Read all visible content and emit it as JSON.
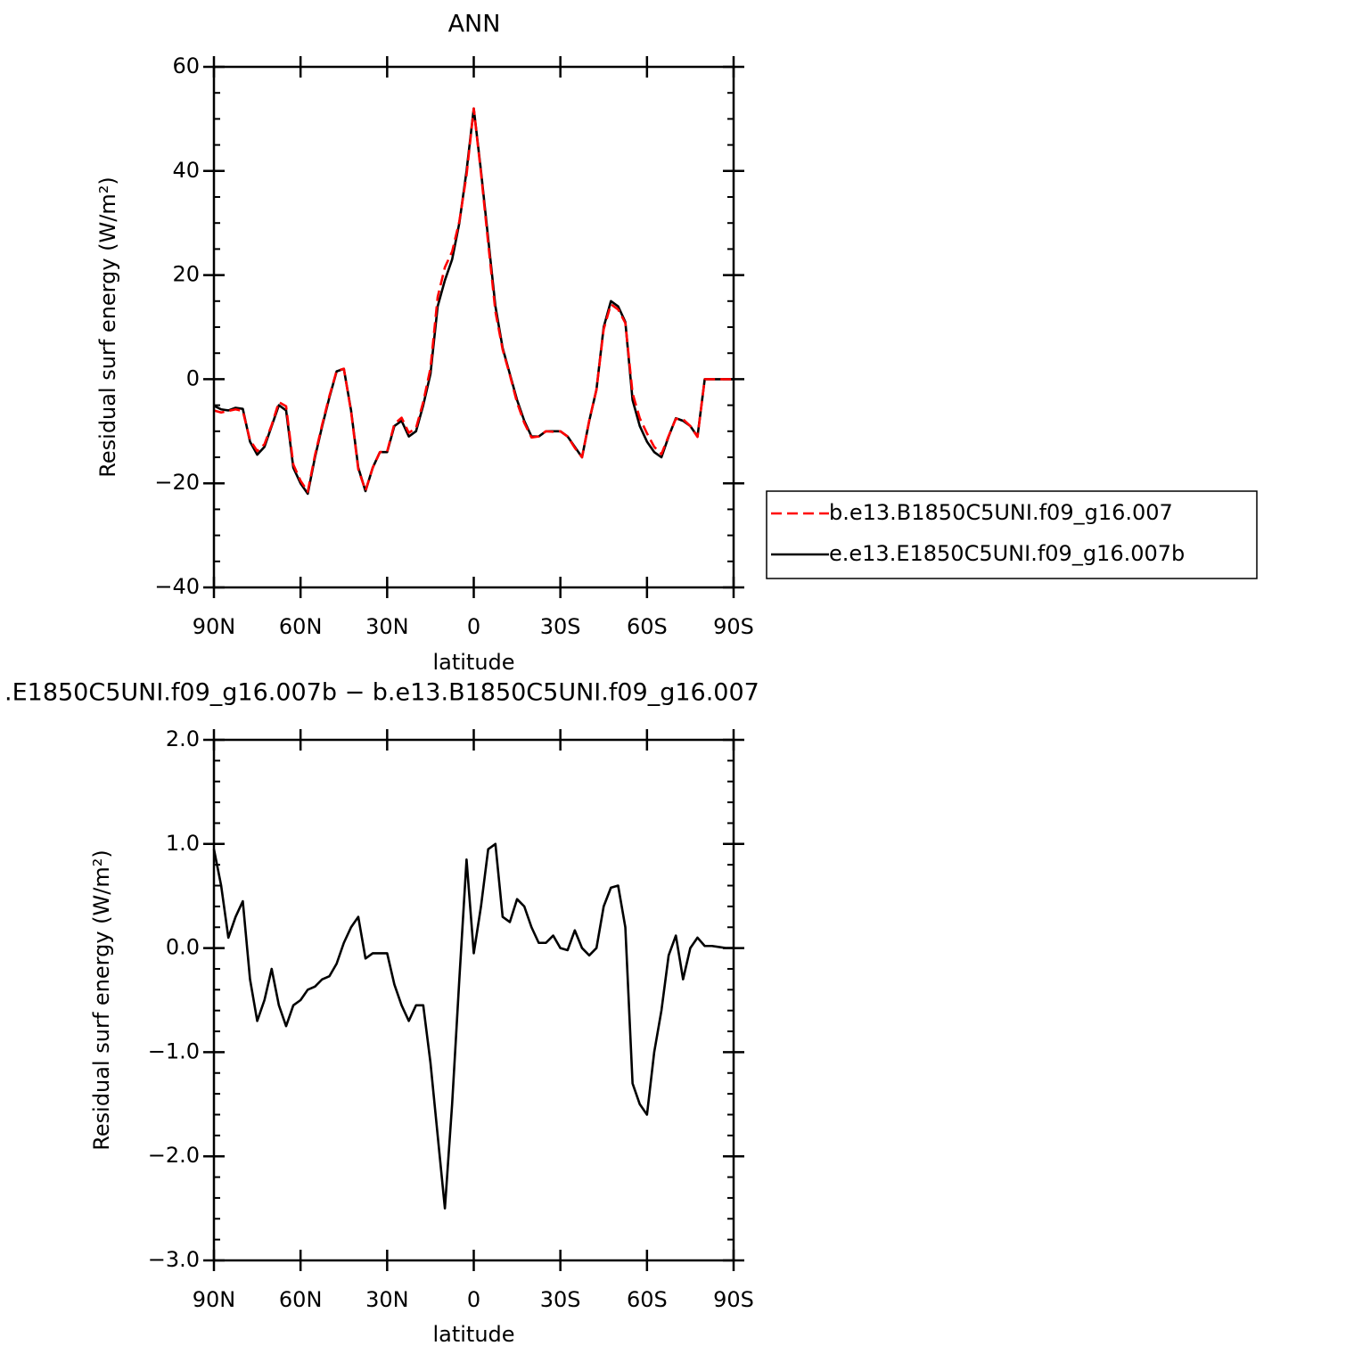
{
  "chart_data": [
    {
      "type": "line",
      "title": "ANN",
      "xlabel": "latitude",
      "ylabel": "Residual surf energy (W/m²)",
      "x": [
        90,
        87.5,
        85,
        82.5,
        80,
        77.5,
        75,
        72.5,
        70,
        67.5,
        65,
        62.5,
        60,
        57.5,
        55,
        52.5,
        50,
        47.5,
        45,
        42.5,
        40,
        37.5,
        35,
        32.5,
        30,
        27.5,
        25,
        22.5,
        20,
        17.5,
        15,
        12.5,
        10,
        7.5,
        5,
        2.5,
        0,
        -2.5,
        -5,
        -7.5,
        -10,
        -12.5,
        -15,
        -17.5,
        -20,
        -22.5,
        -25,
        -27.5,
        -30,
        -32.5,
        -35,
        -37.5,
        -40,
        -42.5,
        -45,
        -47.5,
        -50,
        -52.5,
        -55,
        -57.5,
        -60,
        -62.5,
        -65,
        -67.5,
        -70,
        -72.5,
        -75,
        -77.5,
        -80,
        -82.5,
        -85,
        -87.5,
        -90
      ],
      "series": [
        {
          "name": "b.e13.B1850C5UNI.f09_g16.007",
          "color": "#ff0000",
          "dashed": true,
          "values": [
            -6.0,
            -6.4,
            -6.1,
            -5.8,
            -6.1,
            -11.7,
            -13.8,
            -12.5,
            -8.8,
            -4.4,
            -5.2,
            -16.4,
            -19.5,
            -21.6,
            -14.6,
            -8.7,
            -3.2,
            1.6,
            2.0,
            -6.2,
            -17.3,
            -21.4,
            -17,
            -14,
            -13.9,
            -8.6,
            -7.4,
            -10.3,
            -9.4,
            -4.4,
            2.1,
            15.8,
            21.5,
            24.5,
            30.3,
            39.2,
            52.0,
            39.6,
            26.1,
            13.0,
            5.7,
            0.8,
            -4.5,
            -8.4,
            -11.2,
            -11,
            -10,
            -10.1,
            -10,
            -11,
            -13.2,
            -15,
            -7.9,
            -2,
            9.6,
            14.4,
            13.4,
            10.8,
            -2.7,
            -7.5,
            -10.4,
            -13,
            -14.4,
            -10.9,
            -7.6,
            -7.7,
            -9,
            -11.1,
            0,
            0,
            0,
            0,
            0
          ]
        },
        {
          "name": "e.e13.E1850C5UNI.f09_g16.007b",
          "color": "#000000",
          "dashed": false,
          "values": [
            -5.1,
            -5.8,
            -6,
            -5.5,
            -5.7,
            -12,
            -14.5,
            -13,
            -9,
            -5,
            -6,
            -17,
            -20,
            -22,
            -15,
            -9,
            -3.5,
            1.5,
            2,
            -6,
            -17,
            -21.5,
            -17,
            -14,
            -14,
            -9,
            -8,
            -11,
            -10,
            -5,
            1,
            14,
            19,
            23,
            30,
            40,
            52,
            40,
            27,
            14,
            6,
            1,
            -4,
            -8,
            -11,
            -11,
            -10,
            -10,
            -10,
            -11,
            -13,
            -15,
            -8,
            -2,
            10,
            15,
            14,
            11,
            -4,
            -9,
            -12,
            -14,
            -15,
            -11,
            -7.5,
            -8,
            -9,
            -11,
            0,
            0,
            0,
            0,
            0
          ]
        }
      ],
      "xlim": [
        90,
        -90
      ],
      "xticks": [
        {
          "value": 90,
          "label": "90N"
        },
        {
          "value": 60,
          "label": "60N"
        },
        {
          "value": 30,
          "label": "30N"
        },
        0,
        {
          "value": -30,
          "label": "30S"
        },
        {
          "value": -60,
          "label": "60S"
        },
        {
          "value": -90,
          "label": "90S"
        }
      ],
      "ylim": [
        -40,
        60
      ],
      "yticks": [
        {
          "value": -40,
          "label": "−40"
        },
        {
          "value": -20,
          "label": "−20"
        },
        0,
        20,
        40,
        60
      ],
      "legend": "right"
    },
    {
      "type": "line",
      "title": ".E1850C5UNI.f09_g16.007b − b.e13.B1850C5UNI.f09_g16.007",
      "xlabel": "latitude",
      "ylabel": "Residual surf energy (W/m²)",
      "x": [
        90,
        87.5,
        85,
        82.5,
        80,
        77.5,
        75,
        72.5,
        70,
        67.5,
        65,
        62.5,
        60,
        57.5,
        55,
        52.5,
        50,
        47.5,
        45,
        42.5,
        40,
        37.5,
        35,
        32.5,
        30,
        27.5,
        25,
        22.5,
        20,
        17.5,
        15,
        12.5,
        10,
        7.5,
        5,
        2.5,
        0,
        -2.5,
        -5,
        -7.5,
        -10,
        -12.5,
        -15,
        -17.5,
        -20,
        -22.5,
        -25,
        -27.5,
        -30,
        -32.5,
        -35,
        -37.5,
        -40,
        -42.5,
        -45,
        -47.5,
        -50,
        -52.5,
        -55,
        -57.5,
        -60,
        -62.5,
        -65,
        -67.5,
        -70,
        -72.5,
        -75,
        -77.5,
        -80,
        -82.5,
        -85,
        -87.5,
        -90
      ],
      "series": [
        {
          "color": "#000000",
          "dashed": false,
          "values": [
            0.95,
            0.6,
            0.1,
            0.3,
            0.45,
            -0.3,
            -0.7,
            -0.5,
            -0.2,
            -0.55,
            -0.75,
            -0.55,
            -0.5,
            -0.4,
            -0.37,
            -0.3,
            -0.27,
            -0.15,
            0.05,
            0.2,
            0.3,
            -0.1,
            -0.05,
            -0.05,
            -0.05,
            -0.35,
            -0.55,
            -0.7,
            -0.55,
            -0.55,
            -1.1,
            -1.8,
            -2.5,
            -1.5,
            -0.3,
            0.85,
            -0.05,
            0.4,
            0.95,
            1.0,
            0.3,
            0.25,
            0.47,
            0.4,
            0.2,
            0.05,
            0.05,
            0.12,
            0.0,
            -0.02,
            0.17,
            0.0,
            -0.07,
            0.0,
            0.4,
            0.58,
            0.6,
            0.2,
            -1.3,
            -1.5,
            -1.6,
            -1.0,
            -0.6,
            -0.07,
            0.12,
            -0.3,
            0.0,
            0.1,
            0.02,
            0.02,
            0.01,
            0.0,
            0.0
          ]
        }
      ],
      "xlim": [
        90,
        -90
      ],
      "xticks": [
        {
          "value": 90,
          "label": "90N"
        },
        {
          "value": 60,
          "label": "60N"
        },
        {
          "value": 30,
          "label": "30N"
        },
        0,
        {
          "value": -30,
          "label": "30S"
        },
        {
          "value": -60,
          "label": "60S"
        },
        {
          "value": -90,
          "label": "90S"
        }
      ],
      "ylim": [
        -3,
        2
      ],
      "yticks": [
        {
          "value": -3,
          "label": "−3.0"
        },
        {
          "value": -2,
          "label": "−2.0"
        },
        {
          "value": -1,
          "label": "−1.0"
        },
        {
          "value": 0,
          "label": "0.0"
        },
        {
          "value": 1,
          "label": "1.0"
        },
        {
          "value": 2,
          "label": "2.0"
        }
      ]
    }
  ]
}
